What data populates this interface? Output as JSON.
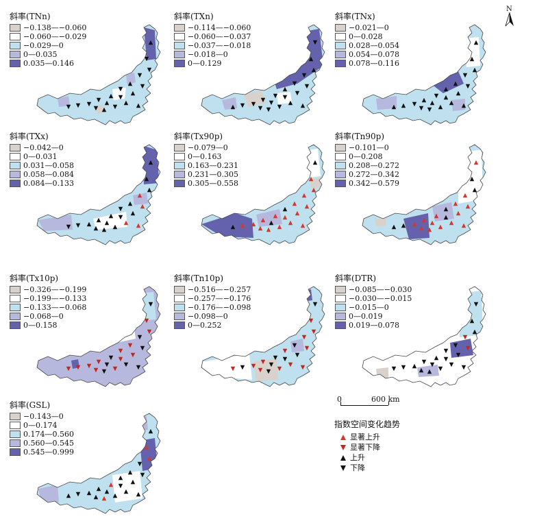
{
  "colors": {
    "class1": "#d9d2cc",
    "class2": "#ffffff",
    "class3": "#bfe0ee",
    "class4": "#b7b8dd",
    "class5": "#6462ad",
    "sig_up": "#d6362c",
    "sig_down": "#c0281e",
    "up": "#111111",
    "down": "#111111"
  },
  "north_label": "N",
  "scale_bar": {
    "start": "0",
    "end": "600 km"
  },
  "trend_legend": {
    "title": "指数空间变化趋势",
    "items": [
      {
        "label": "显著上升",
        "symbol": "up-triangle",
        "color": "#d6362c"
      },
      {
        "label": "显著下降",
        "symbol": "down-triangle",
        "color": "#c0281e"
      },
      {
        "label": "上升",
        "symbol": "up-triangle",
        "color": "#111111"
      },
      {
        "label": "下降",
        "symbol": "down-triangle",
        "color": "#111111"
      }
    ]
  },
  "panels": [
    {
      "title": "斜率(TNn)",
      "classes": [
        "−0.138—−0.060",
        "−0.060—−0.029",
        "−0.029—0",
        "0—0.035",
        "0.035—0.146"
      ],
      "dominant": "class3",
      "markers": [
        "down",
        "up",
        "down",
        "up",
        "down",
        "down",
        "up",
        "down",
        "down",
        "up"
      ]
    },
    {
      "title": "斜率(TXn)",
      "classes": [
        "−0.114—−0.060",
        "−0.060—−0.037",
        "−0.037—−0.018",
        "−0.018—0",
        "0—0.129"
      ],
      "dominant": "class3",
      "markers": [
        "down",
        "down",
        "up",
        "down",
        "down",
        "up",
        "down",
        "down",
        "down",
        "up"
      ]
    },
    {
      "title": "斜率(TNx)",
      "classes": [
        "−0.021—0",
        "0—0.028",
        "0.028—0.054",
        "0.054—0.078",
        "0.078—0.116"
      ],
      "dominant": "class3",
      "markers": [
        "up",
        "down",
        "up",
        "up",
        "down",
        "up",
        "up",
        "down",
        "up",
        "up"
      ]
    },
    {
      "title": "斜率(TXx)",
      "classes": [
        "−0.042—0",
        "0—0.031",
        "0.031—0.058",
        "0.058—0.084",
        "0.084—0.133"
      ],
      "dominant": "class3",
      "markers": [
        "up",
        "up",
        "down",
        "up",
        "sig_up",
        "up",
        "up",
        "up",
        "down",
        "sig_up"
      ]
    },
    {
      "title": "斜率(Tx90p)",
      "classes": [
        "−0.079—0",
        "0—0.163",
        "0.163—0.231",
        "0.231—0.305",
        "0.305—0.558"
      ],
      "dominant": "class3",
      "markers": [
        "sig_up",
        "sig_up",
        "up",
        "sig_up",
        "sig_up",
        "sig_up",
        "up",
        "sig_up",
        "sig_up",
        "sig_up"
      ]
    },
    {
      "title": "斜率(Tn90p)",
      "classes": [
        "−0.101—0",
        "0—0.208",
        "0.208—0.272",
        "0.272—0.342",
        "0.342—0.579"
      ],
      "dominant": "class3",
      "markers": [
        "sig_up",
        "sig_up",
        "up",
        "sig_up",
        "sig_up",
        "up",
        "sig_up",
        "sig_up",
        "up",
        "sig_up"
      ]
    },
    {
      "title": "斜率(Tx10p)",
      "classes": [
        "−0.326—−0.199",
        "−0.199—−0.133",
        "−0.133—−0.068",
        "−0.068—0",
        "0—0.158"
      ],
      "dominant": "class4",
      "markers": [
        "sig_down",
        "down",
        "sig_down",
        "sig_down",
        "down",
        "sig_down",
        "down",
        "sig_down",
        "sig_down",
        "down"
      ]
    },
    {
      "title": "斜率(Tn10p)",
      "classes": [
        "−0.516—−0.257",
        "−0.257—−0.176",
        "−0.176—−0.098",
        "−0.098—0",
        "0—0.252"
      ],
      "dominant": "class3",
      "markers": [
        "sig_down",
        "down",
        "sig_down",
        "down",
        "sig_down",
        "sig_down",
        "down",
        "sig_down",
        "down",
        "sig_down"
      ]
    },
    {
      "title": "斜率(DTR)",
      "classes": [
        "−0.085—−0.030",
        "−0.030—−0.015",
        "−0.015—0",
        "0—0.019",
        "0.019—0.078"
      ],
      "dominant": "class2",
      "markers": [
        "down",
        "up",
        "down",
        "down",
        "sig_down",
        "up",
        "down",
        "up",
        "down",
        "down"
      ]
    },
    {
      "title": "斜率(GSL)",
      "classes": [
        "−0.143—0",
        "0—0.174",
        "0.174—0.560",
        "0.560—0.545",
        "0.545—0.999"
      ],
      "dominant": "class3",
      "markers": [
        "up",
        "sig_up",
        "up",
        "up",
        "down",
        "sig_up",
        "up",
        "up",
        "down",
        "up"
      ]
    }
  ]
}
